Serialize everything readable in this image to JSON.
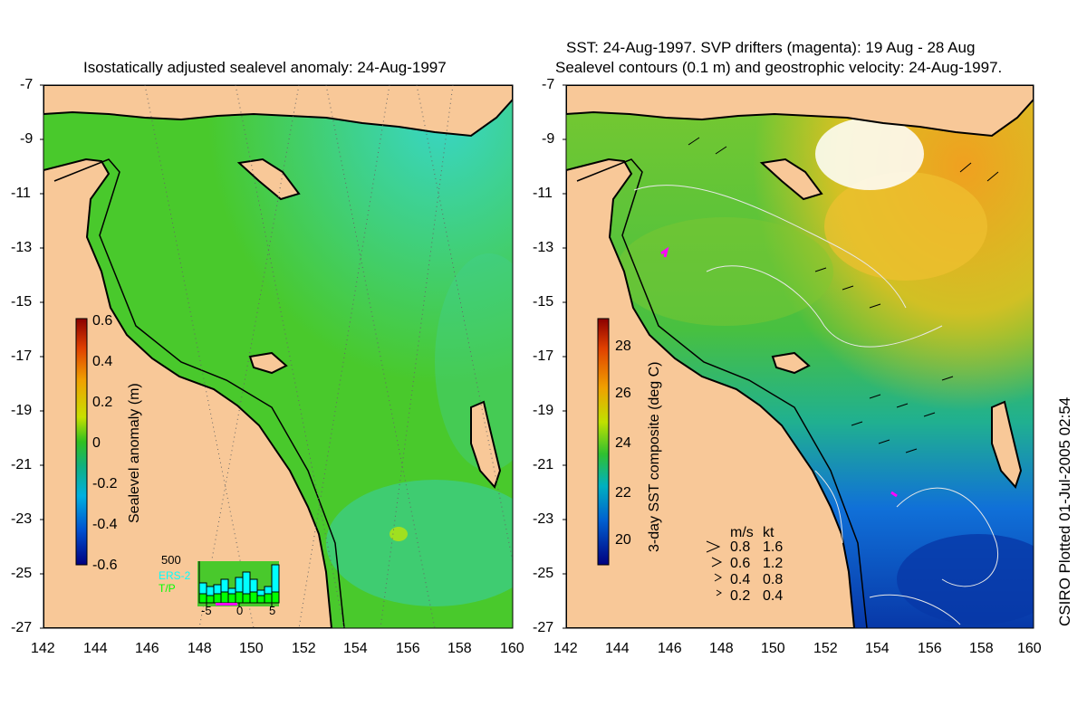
{
  "left_panel": {
    "title": "Isostatically adjusted sealevel anomaly: 24-Aug-1997",
    "colorbar_label": "Sealevel anomaly (m)",
    "colorbar_ticks": [
      "0.6",
      "0.4",
      "0.2",
      "0",
      "-0.2",
      "-0.4",
      "-0.6"
    ],
    "histogram": {
      "ymax_label": "500",
      "x_ticks": [
        "-5",
        "0",
        "5"
      ],
      "legend": [
        "ERS-2",
        "T/P"
      ],
      "ers2_color": "#00ffff",
      "tp_color": "#00ff00"
    }
  },
  "right_panel": {
    "title_line1": "SST: 24-Aug-1997. SVP drifters (magenta): 19 Aug - 28 Aug",
    "title_line2": "Sealevel contours (0.1 m) and geostrophic velocity: 24-Aug-1997.",
    "colorbar_label": "3-day SST composite (deg C)",
    "colorbar_ticks": [
      "28",
      "26",
      "24",
      "22",
      "20"
    ],
    "velocity_legend": {
      "header_ms": "m/s",
      "header_kt": "kt",
      "rows": [
        {
          "ms": "0.8",
          "kt": "1.6"
        },
        {
          "ms": "0.6",
          "kt": "1.2"
        },
        {
          "ms": "0.4",
          "kt": "0.8"
        },
        {
          "ms": "0.2",
          "kt": "0.4"
        }
      ]
    }
  },
  "axes": {
    "y_ticks": [
      "-7",
      "-9",
      "-11",
      "-13",
      "-15",
      "-17",
      "-19",
      "-21",
      "-23",
      "-25",
      "-27"
    ],
    "x_ticks": [
      "142",
      "144",
      "146",
      "148",
      "150",
      "152",
      "154",
      "156",
      "158",
      "160"
    ]
  },
  "credit": "CSIRO Plotted 01-Jul-2005 02:54",
  "colors": {
    "land": "#f8c898",
    "sla_green": "#49c92c",
    "sla_cyan": "#38d6c8",
    "sst_orange": "#f0a020",
    "sst_green": "#40c040",
    "sst_blue": "#1060d0"
  }
}
